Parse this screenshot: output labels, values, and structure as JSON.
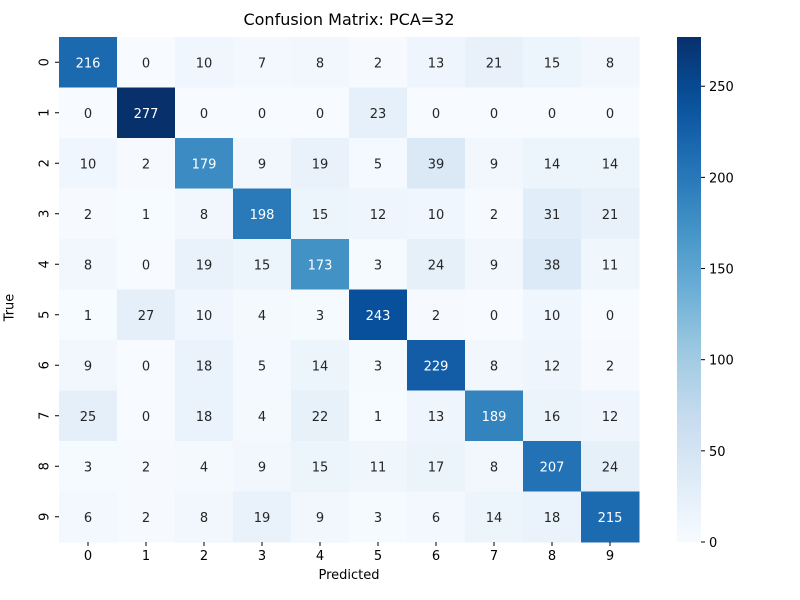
{
  "chart_data": {
    "type": "heatmap",
    "title": "Confusion Matrix: PCA=32",
    "xlabel": "Predicted",
    "ylabel": "True",
    "x_categories": [
      "0",
      "1",
      "2",
      "3",
      "4",
      "5",
      "6",
      "7",
      "8",
      "9"
    ],
    "y_categories": [
      "0",
      "1",
      "2",
      "3",
      "4",
      "5",
      "6",
      "7",
      "8",
      "9"
    ],
    "matrix": [
      [
        216,
        0,
        10,
        7,
        8,
        2,
        13,
        21,
        15,
        8
      ],
      [
        0,
        277,
        0,
        0,
        0,
        23,
        0,
        0,
        0,
        0
      ],
      [
        10,
        2,
        179,
        9,
        19,
        5,
        39,
        9,
        14,
        14
      ],
      [
        2,
        1,
        8,
        198,
        15,
        12,
        10,
        2,
        31,
        21
      ],
      [
        8,
        0,
        19,
        15,
        173,
        3,
        24,
        9,
        38,
        11
      ],
      [
        1,
        27,
        10,
        4,
        3,
        243,
        2,
        0,
        10,
        0
      ],
      [
        9,
        0,
        18,
        5,
        14,
        3,
        229,
        8,
        12,
        2
      ],
      [
        25,
        0,
        18,
        4,
        22,
        1,
        13,
        189,
        16,
        12
      ],
      [
        3,
        2,
        4,
        9,
        15,
        11,
        17,
        8,
        207,
        24
      ],
      [
        6,
        2,
        8,
        19,
        9,
        3,
        6,
        14,
        18,
        215
      ]
    ],
    "colorscale": "Blues",
    "vmin": 0,
    "vmax": 277,
    "colorbar_ticks": [
      "0",
      "50",
      "100",
      "150",
      "200",
      "250"
    ]
  }
}
